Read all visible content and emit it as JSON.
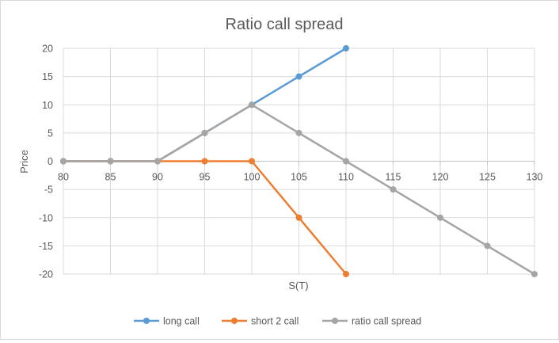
{
  "chart_data": {
    "type": "line",
    "title": "Ratio call spread",
    "xlabel": "S(T)",
    "ylabel": "Price",
    "x": [
      80,
      85,
      90,
      95,
      100,
      105,
      110,
      115,
      120,
      125,
      130
    ],
    "xlim": [
      80,
      130
    ],
    "ylim": [
      -20,
      20
    ],
    "yticks": [
      20,
      15,
      10,
      5,
      0,
      -5,
      -10,
      -15,
      -20
    ],
    "grid": true,
    "legend_position": "bottom",
    "series": [
      {
        "name": "long call",
        "color": "#5b9bd5",
        "points": [
          [
            80,
            0
          ],
          [
            85,
            0
          ],
          [
            90,
            0
          ],
          [
            95,
            5
          ],
          [
            100,
            10
          ],
          [
            105,
            15
          ],
          [
            110,
            20
          ]
        ]
      },
      {
        "name": "short 2 call",
        "color": "#ed7d31",
        "points": [
          [
            80,
            0
          ],
          [
            85,
            0
          ],
          [
            90,
            0
          ],
          [
            95,
            0
          ],
          [
            100,
            0
          ],
          [
            105,
            -10
          ],
          [
            110,
            -20
          ]
        ]
      },
      {
        "name": "ratio call spread",
        "color": "#a5a5a5",
        "points": [
          [
            80,
            0
          ],
          [
            85,
            0
          ],
          [
            90,
            0
          ],
          [
            95,
            5
          ],
          [
            100,
            10
          ],
          [
            105,
            5
          ],
          [
            110,
            0
          ],
          [
            115,
            -5
          ],
          [
            120,
            -10
          ],
          [
            125,
            -15
          ],
          [
            130,
            -20
          ]
        ]
      }
    ]
  }
}
